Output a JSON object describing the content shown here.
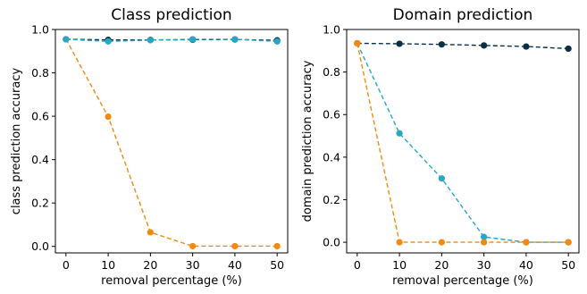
{
  "chart_data": [
    {
      "type": "line",
      "title": "Class prediction",
      "xlabel": "removal percentage (%)",
      "ylabel": "class prediction accuracy",
      "x": [
        0,
        10,
        20,
        30,
        40,
        50
      ],
      "xlim": [
        -2.5,
        52.5
      ],
      "ylim": [
        -0.03,
        1.0
      ],
      "xticks": [
        "0",
        "10",
        "20",
        "30",
        "40",
        "50"
      ],
      "yticks": [
        "0.0",
        "0.2",
        "0.4",
        "0.6",
        "0.8",
        "1.0"
      ],
      "grid": false,
      "series": [
        {
          "color": "#0a2f45",
          "values": [
            0.955,
            0.952,
            0.952,
            0.953,
            0.954,
            0.95
          ]
        },
        {
          "color": "#f28a10",
          "values": [
            0.955,
            0.598,
            0.065,
            0.001,
            0.001,
            0.001
          ]
        },
        {
          "color": "#26a7c4",
          "values": [
            0.955,
            0.945,
            0.951,
            0.955,
            0.955,
            0.945
          ]
        }
      ]
    },
    {
      "type": "line",
      "title": "Domain prediction",
      "xlabel": "removal percentage (%)",
      "ylabel": "domain prediction accuracy",
      "x": [
        0,
        10,
        20,
        30,
        40,
        50
      ],
      "xlim": [
        -2.5,
        52.5
      ],
      "ylim": [
        -0.05,
        1.0
      ],
      "xticks": [
        "0",
        "10",
        "20",
        "30",
        "40",
        "50"
      ],
      "yticks": [
        "0.0",
        "0.2",
        "0.4",
        "0.6",
        "0.8",
        "1.0"
      ],
      "grid": false,
      "series": [
        {
          "color": "#0a2f45",
          "values": [
            0.935,
            0.933,
            0.93,
            0.925,
            0.92,
            0.91
          ]
        },
        {
          "color": "#26a7c4",
          "values": [
            0.935,
            0.512,
            0.3,
            0.025,
            0.0,
            0.0
          ]
        },
        {
          "color": "#f28a10",
          "values": [
            0.935,
            0.0,
            0.0,
            0.0,
            0.0,
            0.0
          ]
        }
      ]
    }
  ]
}
